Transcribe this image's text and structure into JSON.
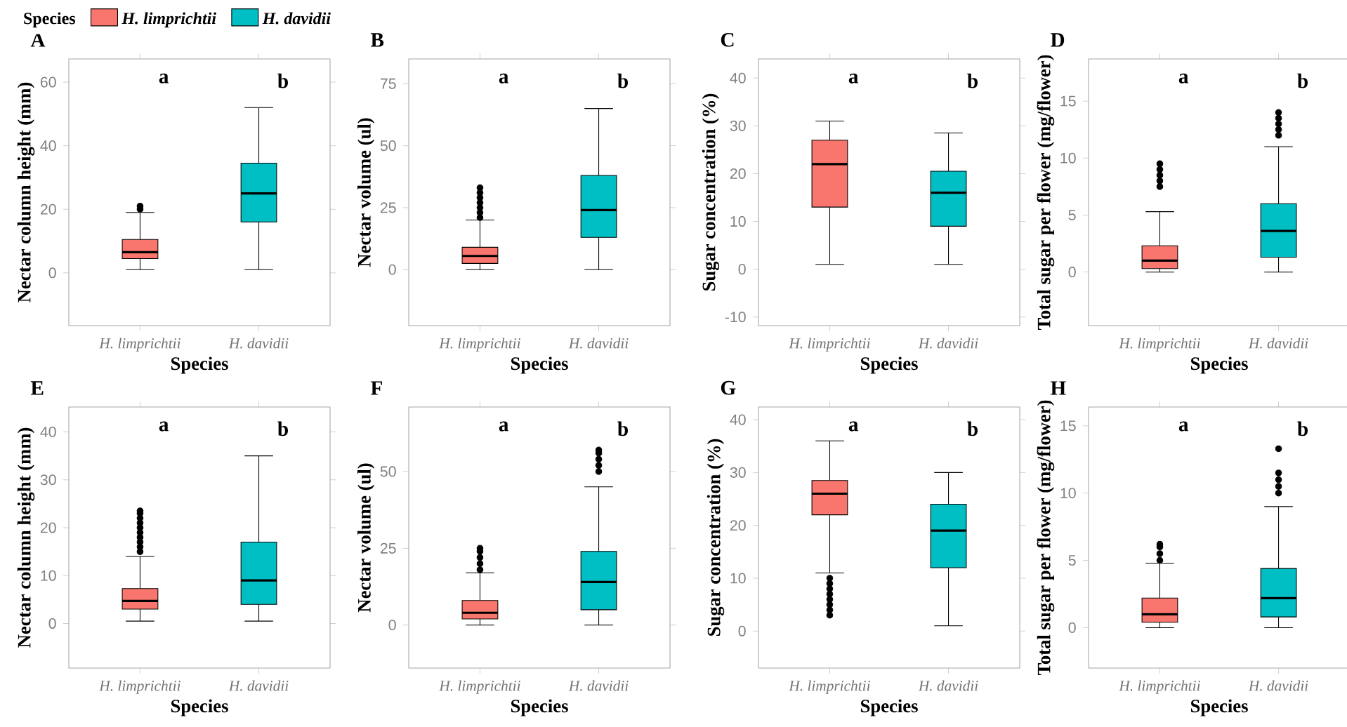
{
  "chart_data": [
    {
      "type": "box",
      "title": "A",
      "xlabel": "Species",
      "ylabel": "Nectar column height (mm)",
      "legend_title": "Species",
      "legend": "top",
      "categories": [
        "H. limprichtii",
        "H. davidii"
      ],
      "ylim": [
        -16.6,
        67.3
      ],
      "yticks": [
        0,
        20,
        40,
        60
      ],
      "series": [
        {
          "name": "H. limprichtii",
          "color": "#f8766d",
          "boxes": [
            {
              "low": 1,
              "q1": 4.5,
              "median": 6.5,
              "q3": 10.5,
              "high": 19,
              "outliers": [
                20,
                21
              ]
            },
            null
          ]
        },
        {
          "name": "H. davidii",
          "color": "#00bfc4",
          "boxes": [
            null,
            {
              "low": 1,
              "q1": 16,
              "median": 25,
              "q3": 34.5,
              "high": 52
            }
          ]
        }
      ],
      "annotations": [
        "a",
        "b"
      ]
    },
    {
      "type": "box",
      "title": "B",
      "xlabel": "Species",
      "ylabel": "Nectar volume (ul)",
      "categories": [
        "H. limprichtii",
        "H. davidii"
      ],
      "ylim": [
        -22.6,
        85
      ],
      "yticks": [
        0,
        25,
        50,
        75
      ],
      "series": [
        {
          "color": "#f8766d",
          "boxes": [
            {
              "low": 0,
              "q1": 2.5,
              "median": 5.5,
              "q3": 9,
              "high": 20,
              "outliers": [
                21,
                23,
                25,
                27,
                29,
                31,
                33
              ]
            },
            null
          ]
        },
        {
          "color": "#00bfc4",
          "boxes": [
            null,
            {
              "low": 0,
              "q1": 13,
              "median": 24,
              "q3": 38,
              "high": 65
            }
          ]
        }
      ],
      "annotations": [
        "a",
        "b"
      ]
    },
    {
      "type": "box",
      "title": "C",
      "xlabel": "Species",
      "ylabel": "Sugar concentration (%)",
      "categories": [
        "H. limprichtii",
        "H. davidii"
      ],
      "ylim": [
        -11.8,
        44
      ],
      "yticks": [
        -10,
        0,
        10,
        20,
        30,
        40
      ],
      "series": [
        {
          "color": "#f8766d",
          "boxes": [
            {
              "low": 1,
              "q1": 13,
              "median": 22,
              "q3": 27,
              "high": 31
            },
            null
          ]
        },
        {
          "color": "#00bfc4",
          "boxes": [
            null,
            {
              "low": 1,
              "q1": 9,
              "median": 16,
              "q3": 20.5,
              "high": 28.5
            }
          ]
        }
      ],
      "annotations": [
        "a",
        "b"
      ]
    },
    {
      "type": "box",
      "title": "D",
      "xlabel": "Species",
      "ylabel": "Total sugar per flower (mg/flower)",
      "categories": [
        "H. limprichtii",
        "H. davidii"
      ],
      "ylim": [
        -4.7,
        18.7
      ],
      "yticks": [
        0,
        5,
        10,
        15
      ],
      "series": [
        {
          "color": "#f8766d",
          "boxes": [
            {
              "low": 0,
              "q1": 0.3,
              "median": 1,
              "q3": 2.3,
              "high": 5.3,
              "outliers": [
                7.5,
                8,
                8.5,
                9,
                9.5
              ]
            },
            null
          ]
        },
        {
          "color": "#00bfc4",
          "boxes": [
            null,
            {
              "low": 0,
              "q1": 1.3,
              "median": 3.6,
              "q3": 6,
              "high": 11,
              "outliers": [
                12,
                12.5,
                13,
                13.5,
                14
              ]
            }
          ]
        }
      ],
      "annotations": [
        "a",
        "b"
      ]
    },
    {
      "type": "box",
      "title": "E",
      "xlabel": "Species",
      "ylabel": "Nectar column height (mm)",
      "categories": [
        "H. limprichtii",
        "H. davidii"
      ],
      "ylim": [
        -9.3,
        45.2
      ],
      "yticks": [
        0,
        10,
        20,
        30,
        40
      ],
      "series": [
        {
          "color": "#f8766d",
          "boxes": [
            {
              "low": 0.5,
              "q1": 3,
              "median": 4.7,
              "q3": 7.3,
              "high": 14,
              "outliers": [
                15,
                16,
                17,
                18,
                19,
                20,
                21,
                22,
                23,
                23.5
              ]
            },
            null
          ]
        },
        {
          "color": "#00bfc4",
          "boxes": [
            null,
            {
              "low": 0.5,
              "q1": 4,
              "median": 9,
              "q3": 17,
              "high": 35
            }
          ]
        }
      ],
      "annotations": [
        "a",
        "b"
      ]
    },
    {
      "type": "box",
      "title": "F",
      "xlabel": "Species",
      "ylabel": "Nectar volume (ul)",
      "categories": [
        "H. limprichtii",
        "H. davidii"
      ],
      "ylim": [
        -14,
        71
      ],
      "yticks": [
        0,
        25,
        50
      ],
      "series": [
        {
          "color": "#f8766d",
          "boxes": [
            {
              "low": 0,
              "q1": 2,
              "median": 4,
              "q3": 8,
              "high": 17,
              "outliers": [
                18,
                20,
                22,
                24,
                25
              ]
            },
            null
          ]
        },
        {
          "color": "#00bfc4",
          "boxes": [
            null,
            {
              "low": 0,
              "q1": 5,
              "median": 14,
              "q3": 24,
              "high": 45,
              "outliers": [
                50,
                52,
                54,
                56,
                57
              ]
            }
          ]
        }
      ],
      "annotations": [
        "a",
        "b"
      ]
    },
    {
      "type": "box",
      "title": "G",
      "xlabel": "Species",
      "ylabel": "Sugar concentration (%)",
      "categories": [
        "H. limprichtii",
        "H. davidii"
      ],
      "ylim": [
        -7,
        42.4
      ],
      "yticks": [
        0,
        10,
        20,
        30,
        40
      ],
      "series": [
        {
          "color": "#f8766d",
          "boxes": [
            {
              "low": 11,
              "q1": 22,
              "median": 26,
              "q3": 28.5,
              "high": 36,
              "outliers": [
                3,
                4,
                5,
                6,
                7,
                8,
                9,
                10
              ]
            },
            null
          ]
        },
        {
          "color": "#00bfc4",
          "boxes": [
            null,
            {
              "low": 1,
              "q1": 12,
              "median": 19,
              "q3": 24,
              "high": 30
            }
          ]
        }
      ],
      "annotations": [
        "a",
        "b"
      ]
    },
    {
      "type": "box",
      "title": "H",
      "xlabel": "Species",
      "ylabel": "Total sugar per flower (mg/flower)",
      "categories": [
        "H. limprichtii",
        "H. davidii"
      ],
      "ylim": [
        -3,
        16.4
      ],
      "yticks": [
        0,
        5,
        10,
        15
      ],
      "series": [
        {
          "color": "#f8766d",
          "boxes": [
            {
              "low": 0,
              "q1": 0.4,
              "median": 1,
              "q3": 2.2,
              "high": 4.8,
              "outliers": [
                5,
                5.5,
                6,
                6.2
              ]
            },
            null
          ]
        },
        {
          "color": "#00bfc4",
          "boxes": [
            null,
            {
              "low": 0,
              "q1": 0.8,
              "median": 2.2,
              "q3": 4.4,
              "high": 9,
              "outliers": [
                10,
                10.5,
                11,
                11.5,
                13.3
              ]
            }
          ]
        }
      ],
      "annotations": [
        "a",
        "b"
      ]
    }
  ]
}
